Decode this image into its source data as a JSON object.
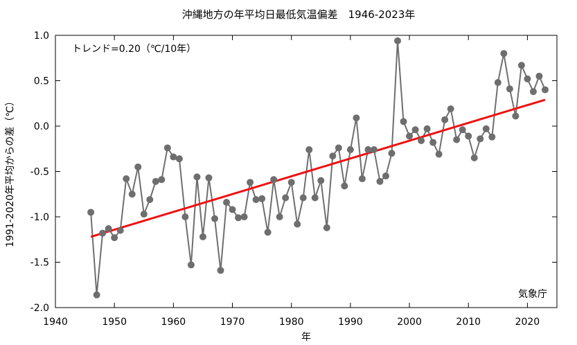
{
  "chart_data": {
    "type": "line",
    "title": "沖縄地方の年平均日最低気温偏差　1946-2023年",
    "xlabel": "年",
    "ylabel": "1991-2020年平均からの差（℃）",
    "xlim": [
      1940,
      2025
    ],
    "ylim": [
      -2.0,
      1.0
    ],
    "x_ticks": [
      1940,
      1950,
      1960,
      1970,
      1980,
      1990,
      2000,
      2010,
      2020
    ],
    "y_ticks": [
      -2.0,
      -1.5,
      -1.0,
      -0.5,
      0.0,
      0.5,
      1.0
    ],
    "x_tick_labels": [
      "1940",
      "1950",
      "1960",
      "1970",
      "1980",
      "1990",
      "2000",
      "2010",
      "2020"
    ],
    "y_tick_labels": [
      "-2.0",
      "-1.5",
      "-1.0",
      "-0.5",
      "0.0",
      "0.5",
      "1.0"
    ],
    "grid": false,
    "trend_text": "トレンド=0.20（℃/10年）",
    "source": "気象庁",
    "colors": {
      "series": "#6e6e6e",
      "trend": "#ee1111"
    },
    "x": [
      1946,
      1947,
      1948,
      1949,
      1950,
      1951,
      1952,
      1953,
      1954,
      1955,
      1956,
      1957,
      1958,
      1959,
      1960,
      1961,
      1962,
      1963,
      1964,
      1965,
      1966,
      1967,
      1968,
      1969,
      1970,
      1971,
      1972,
      1973,
      1974,
      1975,
      1976,
      1977,
      1978,
      1979,
      1980,
      1981,
      1982,
      1983,
      1984,
      1985,
      1986,
      1987,
      1988,
      1989,
      1990,
      1991,
      1992,
      1993,
      1994,
      1995,
      1996,
      1997,
      1998,
      1999,
      2000,
      2001,
      2002,
      2003,
      2004,
      2005,
      2006,
      2007,
      2008,
      2009,
      2010,
      2011,
      2012,
      2013,
      2014,
      2015,
      2016,
      2017,
      2018,
      2019,
      2020,
      2021,
      2022,
      2023
    ],
    "series": [
      {
        "values": [
          -0.95,
          -1.86,
          -1.18,
          -1.13,
          -1.23,
          -1.15,
          -0.58,
          -0.75,
          -0.45,
          -0.97,
          -0.81,
          -0.61,
          -0.59,
          -0.24,
          -0.34,
          -0.36,
          -1.0,
          -1.53,
          -0.56,
          -1.22,
          -0.57,
          -1.02,
          -1.59,
          -0.84,
          -0.92,
          -1.01,
          -1.0,
          -0.62,
          -0.81,
          -0.8,
          -1.17,
          -0.59,
          -1.0,
          -0.79,
          -0.62,
          -1.08,
          -0.79,
          -0.26,
          -0.79,
          -0.6,
          -1.12,
          -0.33,
          -0.24,
          -0.66,
          -0.26,
          0.09,
          -0.58,
          -0.26,
          -0.26,
          -0.61,
          -0.55,
          -0.3,
          0.94,
          0.05,
          -0.11,
          -0.04,
          -0.16,
          -0.03,
          -0.18,
          -0.31,
          0.07,
          0.19,
          -0.15,
          -0.04,
          -0.11,
          -0.35,
          -0.14,
          -0.03,
          -0.12,
          0.48,
          0.8,
          0.41,
          0.11,
          0.67,
          0.52,
          0.38,
          0.55,
          0.4
        ]
      }
    ],
    "trend": {
      "x": [
        1946,
        2023
      ],
      "y": [
        -1.22,
        0.29
      ]
    }
  }
}
